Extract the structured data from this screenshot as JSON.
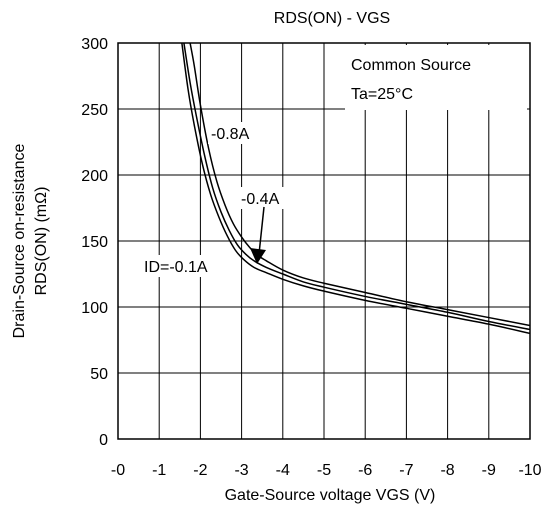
{
  "chart_data": {
    "type": "line",
    "title": "RDS(ON) - VGS",
    "xlabel": "Gate-Source voltage VGS (V)",
    "ylabel_line1": "Drain-Source on-resistance",
    "ylabel_line2": "RDS(ON) (mΩ)",
    "xlim": [
      0,
      -10
    ],
    "ylim": [
      0,
      300
    ],
    "x_ticks": [
      0,
      -1,
      -2,
      -3,
      -4,
      -5,
      -6,
      -7,
      -8,
      -9,
      -10
    ],
    "x_tick_labels": [
      "-0",
      "-1",
      "-2",
      "-3",
      "-4",
      "-5",
      "-6",
      "-7",
      "-8",
      "-9",
      "-10"
    ],
    "y_ticks": [
      0,
      50,
      100,
      150,
      200,
      250,
      300
    ],
    "y_tick_labels": [
      "0",
      "50",
      "100",
      "150",
      "200",
      "250",
      "300"
    ],
    "grid": true,
    "legend_box": {
      "line1": "Common Source",
      "line2": "Ta=25°C",
      "placement": "top-right"
    },
    "annotations": [
      {
        "text": "-0.8A"
      },
      {
        "text": "-0.4A"
      },
      {
        "text": "ID=-0.1A"
      }
    ],
    "series": [
      {
        "name": "-0.8A",
        "x": [
          -1.75,
          -1.85,
          -2.0,
          -2.2,
          -2.4,
          -2.6,
          -2.8,
          -3.0,
          -3.2,
          -3.4,
          -3.6,
          -4.0,
          -4.5,
          -5.0,
          -6.0,
          -7.0,
          -8.0,
          -9.0,
          -10.0
        ],
        "y": [
          300,
          283,
          253,
          220,
          195,
          177,
          163,
          153,
          145,
          139,
          135,
          128,
          122,
          118,
          111,
          104,
          98,
          92,
          86
        ]
      },
      {
        "name": "-0.4A",
        "x": [
          -1.6,
          -1.75,
          -1.9,
          -2.1,
          -2.3,
          -2.5,
          -2.7,
          -2.9,
          -3.1,
          -3.3,
          -3.6,
          -4.0,
          -4.5,
          -5.0,
          -6.0,
          -7.0,
          -8.0,
          -9.0,
          -10.0
        ],
        "y": [
          300,
          270,
          245,
          215,
          190,
          172,
          158,
          147,
          140,
          135,
          130,
          125,
          119,
          115,
          108,
          102,
          96,
          89,
          83
        ]
      },
      {
        "name": "ID=-0.1A",
        "x": [
          -1.55,
          -1.7,
          -1.85,
          -2.05,
          -2.25,
          -2.45,
          -2.65,
          -2.85,
          -3.05,
          -3.3,
          -3.6,
          -4.0,
          -4.5,
          -5.0,
          -6.0,
          -7.0,
          -8.0,
          -9.0,
          -10.0
        ],
        "y": [
          300,
          265,
          238,
          208,
          185,
          168,
          154,
          143,
          136,
          130,
          126,
          121,
          116,
          112,
          105,
          99,
          93,
          87,
          80
        ]
      }
    ]
  }
}
